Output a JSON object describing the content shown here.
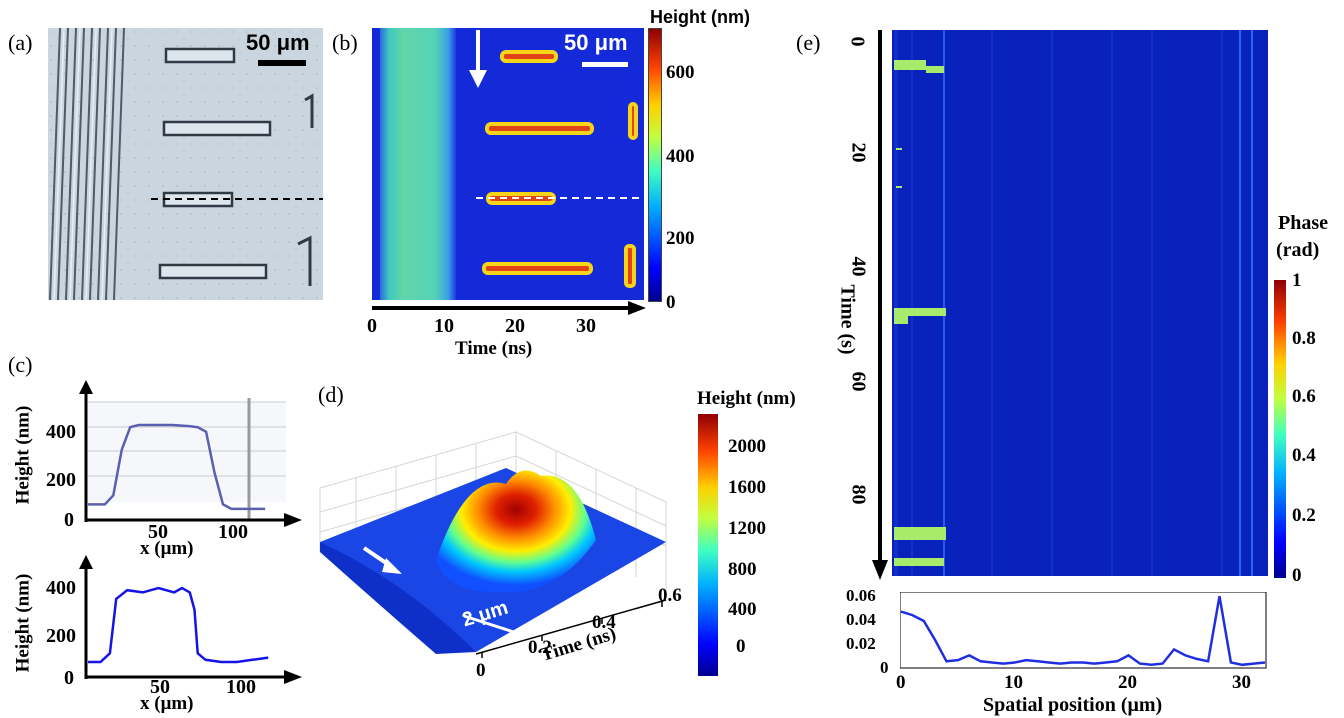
{
  "panels": {
    "a": {
      "label": "(a)",
      "scale_bar": "50 μm"
    },
    "b": {
      "label": "(b)",
      "scale_bar": "50 μm",
      "xlabel": "Time (ns)",
      "xticks": [
        "0",
        "10",
        "20",
        "30"
      ],
      "colorbar": {
        "title": "Height (nm)",
        "ticks": [
          "600",
          "400",
          "200",
          "0"
        ]
      }
    },
    "c": {
      "label": "(c)",
      "top": {
        "ylabel": "Height (nm)",
        "xlabel": "x (μm)",
        "yticks": [
          "0",
          "200",
          "400"
        ],
        "xticks": [
          "50",
          "100"
        ]
      },
      "bottom": {
        "ylabel": "Height (nm)",
        "xlabel": "x (μm)",
        "yticks": [
          "0",
          "200",
          "400"
        ],
        "xticks": [
          "50",
          "100"
        ]
      }
    },
    "d": {
      "label": "(d)",
      "scale_bar": "2 μm",
      "axis_label": "Time (ns)",
      "xticks": [
        "0",
        "0.2",
        "0.4",
        "0.6"
      ],
      "colorbar": {
        "title": "Height (nm)",
        "ticks": [
          "2000",
          "1600",
          "1200",
          "800",
          "400",
          "0"
        ]
      }
    },
    "e": {
      "label": "(e)",
      "ylabel": "Time (s)",
      "yticks": [
        "0",
        "20",
        "40",
        "60",
        "80"
      ],
      "colorbar": {
        "title_line1": "Phase",
        "title_line2": "(rad)",
        "ticks": [
          "1",
          "0.8",
          "0.6",
          "0.4",
          "0.2",
          "0"
        ]
      },
      "bottom": {
        "xlabel": "Spatial position (μm)",
        "xticks": [
          "0",
          "10",
          "20",
          "30"
        ],
        "yticks": [
          "0.06",
          "0.04",
          "0.02",
          "0"
        ]
      }
    }
  },
  "chart_data": [
    {
      "type": "line",
      "title": "",
      "xlabel": "x (μm)",
      "ylabel": "Height (nm)",
      "x": [
        0,
        10,
        15,
        20,
        25,
        30,
        40,
        50,
        60,
        65,
        70,
        75,
        80,
        85,
        90,
        100,
        105
      ],
      "series": [
        {
          "values": [
            60,
            60,
            100,
            300,
            400,
            410,
            410,
            410,
            405,
            400,
            380,
            200,
            60,
            40,
            40,
            40,
            40
          ]
        }
      ],
      "xlim": [
        0,
        115
      ],
      "ylim": [
        0,
        520
      ]
    },
    {
      "type": "line",
      "title": "",
      "xlabel": "x (μm)",
      "ylabel": "Height (nm)",
      "x": [
        0,
        8,
        14,
        18,
        25,
        35,
        45,
        55,
        60,
        65,
        68,
        70,
        75,
        85,
        95,
        105,
        115
      ],
      "series": [
        {
          "values": [
            60,
            60,
            100,
            350,
            390,
            380,
            400,
            380,
            400,
            380,
            300,
            100,
            70,
            60,
            60,
            70,
            80
          ]
        }
      ],
      "xlim": [
        0,
        120
      ],
      "ylim": [
        0,
        460
      ]
    },
    {
      "type": "line",
      "title": "",
      "xlabel": "Spatial position (μm)",
      "ylabel": "",
      "x": [
        0,
        1,
        2,
        3,
        4,
        5,
        6,
        7,
        8,
        9,
        10,
        11,
        12,
        13,
        14,
        15,
        16,
        17,
        18,
        19,
        20,
        21,
        22,
        23,
        24,
        25,
        26,
        27,
        28,
        29,
        30,
        31,
        32
      ],
      "series": [
        {
          "values": [
            0.046,
            0.043,
            0.038,
            0.022,
            0.004,
            0.005,
            0.009,
            0.004,
            0.003,
            0.002,
            0.003,
            0.005,
            0.004,
            0.003,
            0.002,
            0.003,
            0.003,
            0.002,
            0.003,
            0.004,
            0.009,
            0.002,
            0.001,
            0.002,
            0.014,
            0.009,
            0.006,
            0.004,
            0.059,
            0.003,
            0.001,
            0.002,
            0.003
          ]
        }
      ],
      "xlim": [
        0,
        32
      ],
      "ylim": [
        0,
        0.06
      ]
    }
  ]
}
